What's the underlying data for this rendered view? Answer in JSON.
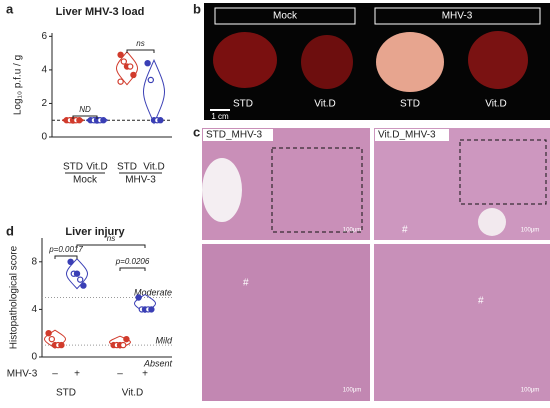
{
  "panels": [
    "a",
    "b",
    "c",
    "d"
  ],
  "chart_data": [
    {
      "type": "strip",
      "title": "Liver MHV-3 load",
      "y_label": "Log₁₀ p.f.u / g",
      "categories": [
        "STD",
        "Vit.D",
        "STD",
        "Vit.D"
      ],
      "groups": [
        "Mock",
        "MHV-3"
      ],
      "colors": [
        "#d13b2c",
        "#3a3fb5",
        "#d13b2c",
        "#3a3fb5"
      ],
      "values": [
        [
          1,
          1,
          1,
          1,
          1
        ],
        [
          1,
          1,
          1,
          1,
          1
        ],
        [
          4.9,
          4.5,
          4.2,
          4.2,
          3.7,
          3.3
        ],
        [
          4.4,
          3.4,
          1,
          1,
          1
        ]
      ],
      "ylim": [
        0,
        6.2
      ],
      "yticks": [
        0,
        2,
        4,
        6
      ],
      "ref_lines": [
        1
      ],
      "annotations": [
        "ND",
        "ns"
      ]
    },
    {
      "type": "strip",
      "title": "Liver injury",
      "y_label": "Histopathological score",
      "categories": [
        "–",
        "+",
        "–",
        "+"
      ],
      "groups": [
        "STD",
        "Vit.D"
      ],
      "x_label": "MHV-3",
      "colors": [
        "#d13b2c",
        "#3a3fb5",
        "#d13b2c",
        "#3a3fb5"
      ],
      "values": [
        [
          2,
          1.5,
          1,
          1,
          1
        ],
        [
          8,
          7,
          7,
          6.5,
          6
        ],
        [
          1,
          1,
          1,
          1,
          1.5
        ],
        [
          5,
          4,
          4,
          4,
          4
        ]
      ],
      "ylim": [
        0,
        10
      ],
      "yticks": [
        0,
        4,
        8
      ],
      "ref_lines": [
        5,
        1
      ],
      "levels": [
        "Moderate",
        "Mild",
        "Absent"
      ],
      "annotations": [
        "p=0.0017",
        "ns",
        "p=0.0206"
      ]
    }
  ],
  "photo_b": {
    "headers": [
      "Mock",
      "MHV-3"
    ],
    "labels": [
      "STD",
      "Vit.D",
      "STD",
      "Vit.D"
    ],
    "scale": "1 cm"
  },
  "photo_c": {
    "labels": [
      "STD_MHV-3",
      "Vit.D_MHV-3"
    ],
    "scales": [
      "100μm",
      "100μm",
      "100μm",
      "100μm"
    ],
    "marks": [
      "#",
      "#",
      "#"
    ]
  }
}
